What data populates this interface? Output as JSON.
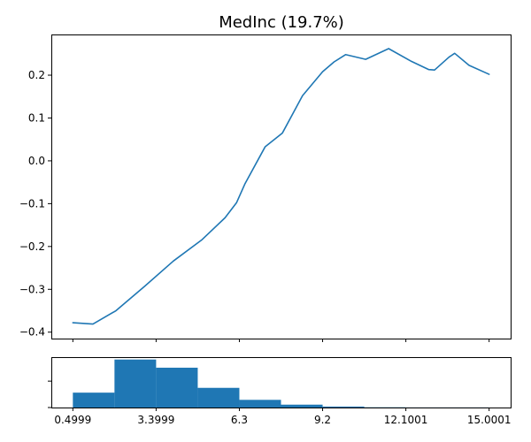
{
  "chart_data": [
    {
      "type": "line",
      "title": "MedInc (19.7%)",
      "xlabel": "",
      "ylabel": "",
      "xlim": [
        -0.25,
        15.75
      ],
      "ylim": [
        -0.415,
        0.295
      ],
      "yticks": [
        -0.4,
        -0.3,
        -0.2,
        -0.1,
        0.0,
        0.1,
        0.2
      ],
      "ytick_labels": [
        "−0.4",
        "−0.3",
        "−0.2",
        "−0.1",
        "0.0",
        "0.1",
        "0.2"
      ],
      "xticks": [
        0.4999,
        3.3999,
        6.3,
        9.2,
        12.1001,
        15.0001
      ],
      "show_xtick_labels": false,
      "grid": false,
      "color": "#1f77b4",
      "series": [
        {
          "x": [
            0.4999,
            1.2,
            2.0,
            3.0,
            4.0,
            5.0,
            5.8,
            6.2,
            6.5,
            7.2,
            7.8,
            8.5,
            9.2,
            9.6,
            10.0,
            10.7,
            11.5,
            12.3,
            12.9,
            13.1,
            13.6,
            13.8,
            14.3,
            15.0001
          ],
          "y": [
            -0.378,
            -0.381,
            -0.35,
            -0.293,
            -0.234,
            -0.184,
            -0.133,
            -0.098,
            -0.053,
            0.033,
            0.065,
            0.152,
            0.208,
            0.231,
            0.248,
            0.237,
            0.262,
            0.232,
            0.213,
            0.212,
            0.242,
            0.251,
            0.223,
            0.202
          ]
        }
      ]
    },
    {
      "type": "bar",
      "title": "",
      "xlabel": "",
      "ylabel": "",
      "xlim": [
        -0.25,
        15.75
      ],
      "ylim": [
        0,
        1.05
      ],
      "xticks": [
        0.4999,
        3.3999,
        6.3,
        9.2,
        12.1001,
        15.0001
      ],
      "xtick_labels": [
        "0.4999",
        "3.3999",
        "6.3",
        "9.2",
        "12.1001",
        "15.0001"
      ],
      "yticks": [
        0,
        0.55
      ],
      "grid": false,
      "color": "#1f77b4",
      "bin_edges": [
        0.4999,
        1.95,
        3.3999,
        4.85,
        6.3,
        7.75,
        9.2,
        10.65,
        12.1001,
        13.55,
        15.0001
      ],
      "values": [
        0.31,
        1.0,
        0.83,
        0.41,
        0.16,
        0.06,
        0.02,
        0.005,
        0.002,
        0.002
      ]
    }
  ]
}
